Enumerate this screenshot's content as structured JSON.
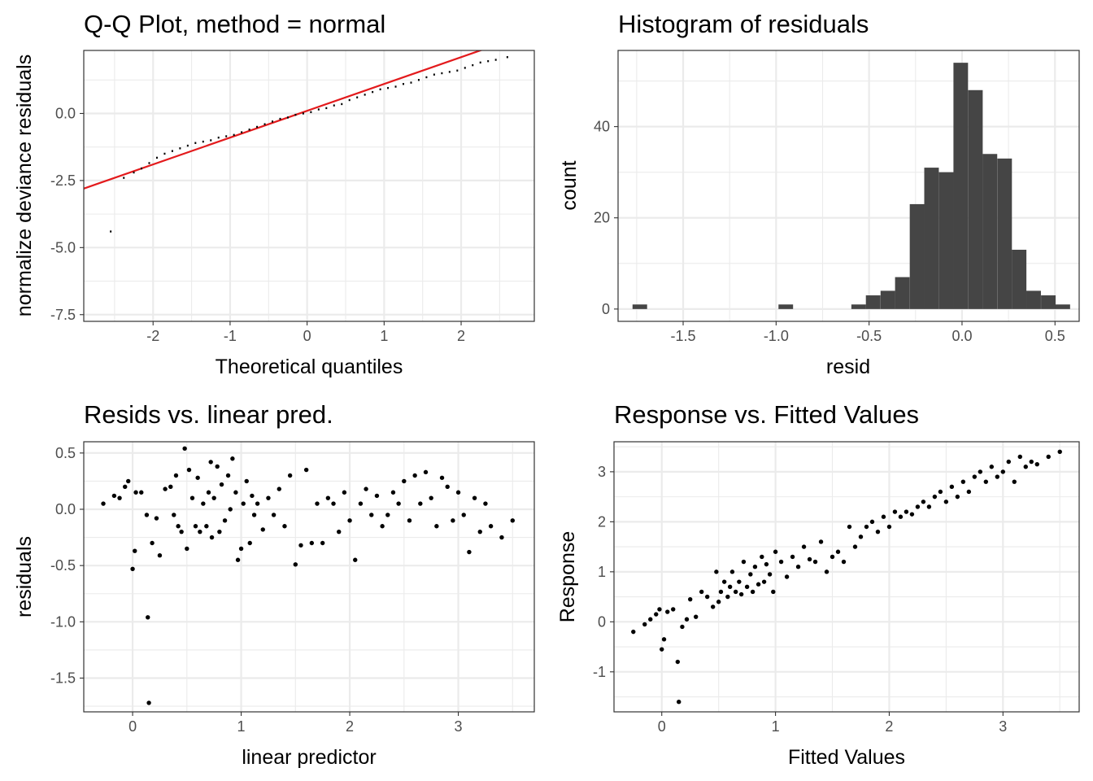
{
  "colors": {
    "points": "#000000",
    "bars": "#454545",
    "qq_line": "#e31a1c",
    "grid": "#ebebeb",
    "border": "#333333"
  },
  "chart_data": [
    {
      "type": "scatter",
      "title": "Q-Q Plot, method = normal",
      "xlabel": "Theoretical quantiles",
      "ylabel": "normalize deviance residuals",
      "xlim": [
        -2.9,
        2.95
      ],
      "ylim": [
        -7.75,
        2.35
      ],
      "xticks": [
        -2,
        -1,
        0,
        1,
        2
      ],
      "xtick_labels": [
        "-2",
        "-1",
        "0",
        "1",
        "2"
      ],
      "yticks": [
        -7.5,
        -5,
        -2.5,
        0
      ],
      "ytick_labels": [
        "-7.5",
        "-5.0",
        "-2.5",
        "0.0"
      ],
      "grid": true,
      "reference_line": {
        "intercept": 0.1,
        "slope": 1.0,
        "color": "#e31a1c"
      },
      "x": [
        -2.55,
        -2.38,
        -2.25,
        -2.15,
        -2.05,
        -1.95,
        -1.85,
        -1.75,
        -1.65,
        -1.55,
        -1.45,
        -1.35,
        -1.25,
        -1.15,
        -1.05,
        -0.95,
        -0.85,
        -0.75,
        -0.65,
        -0.55,
        -0.45,
        -0.35,
        -0.25,
        -0.15,
        -0.05,
        0.05,
        0.15,
        0.25,
        0.35,
        0.45,
        0.55,
        0.65,
        0.75,
        0.85,
        0.95,
        1.05,
        1.15,
        1.25,
        1.35,
        1.45,
        1.55,
        1.65,
        1.75,
        1.85,
        1.95,
        2.05,
        2.15,
        2.25,
        2.35,
        2.45,
        2.6
      ],
      "y": [
        -4.4,
        -2.4,
        -2.2,
        -2.05,
        -1.85,
        -1.65,
        -1.5,
        -1.4,
        -1.3,
        -1.2,
        -1.1,
        -1.05,
        -1.0,
        -0.9,
        -0.85,
        -0.8,
        -0.7,
        -0.6,
        -0.5,
        -0.4,
        -0.3,
        -0.2,
        -0.15,
        -0.05,
        0.0,
        0.05,
        0.15,
        0.2,
        0.3,
        0.35,
        0.5,
        0.6,
        0.7,
        0.8,
        0.9,
        0.95,
        1.0,
        1.1,
        1.15,
        1.25,
        1.35,
        1.45,
        1.5,
        1.55,
        1.6,
        1.7,
        1.8,
        1.9,
        1.95,
        2.0,
        2.1
      ]
    },
    {
      "type": "bar",
      "title": "Histogram of residuals",
      "xlabel": "resid",
      "ylabel": "count",
      "xlim": [
        -1.85,
        0.63
      ],
      "ylim": [
        -2.7,
        56.7
      ],
      "xticks": [
        -1.5,
        -1.0,
        -0.5,
        0.0,
        0.5
      ],
      "xtick_labels": [
        "-1.5",
        "-1.0",
        "-0.5",
        "0.0",
        "0.5"
      ],
      "yticks": [
        0,
        20,
        40
      ],
      "ytick_labels": [
        "0",
        "20",
        "40"
      ],
      "grid": true,
      "bin_width": 0.0784,
      "bin_centers": [
        -1.733,
        -1.655,
        -1.576,
        -1.498,
        -1.419,
        -1.341,
        -1.262,
        -1.184,
        -1.105,
        -1.027,
        -0.948,
        -0.87,
        -0.792,
        -0.713,
        -0.635,
        -0.556,
        -0.478,
        -0.399,
        -0.321,
        -0.242,
        -0.164,
        -0.085,
        -0.007,
        0.072,
        0.15,
        0.229,
        0.307,
        0.385,
        0.464,
        0.542
      ],
      "values": [
        1,
        0,
        0,
        0,
        0,
        0,
        0,
        0,
        0,
        0,
        1,
        0,
        0,
        0,
        0,
        1,
        3,
        4,
        7,
        23,
        31,
        30,
        54,
        48,
        34,
        33,
        13,
        4,
        3,
        1
      ]
    },
    {
      "type": "scatter",
      "title": "Resids vs. linear pred.",
      "xlabel": "linear predictor",
      "ylabel": "residuals",
      "xlim": [
        -0.45,
        3.7
      ],
      "ylim": [
        -1.8,
        0.6
      ],
      "xticks": [
        0,
        1,
        2,
        3
      ],
      "xtick_labels": [
        "0",
        "1",
        "2",
        "3"
      ],
      "yticks": [
        -1.5,
        -1.0,
        -0.5,
        0.0,
        0.5
      ],
      "ytick_labels": [
        "-1.5",
        "-1.0",
        "-0.5",
        "0.0",
        "0.5"
      ],
      "grid": true,
      "x": [
        -0.27,
        -0.17,
        -0.12,
        -0.07,
        -0.04,
        0.0,
        0.02,
        0.03,
        0.08,
        0.13,
        0.14,
        0.15,
        0.18,
        0.22,
        0.25,
        0.3,
        0.35,
        0.38,
        0.4,
        0.42,
        0.45,
        0.48,
        0.5,
        0.52,
        0.55,
        0.58,
        0.6,
        0.62,
        0.65,
        0.68,
        0.7,
        0.72,
        0.73,
        0.75,
        0.78,
        0.8,
        0.82,
        0.85,
        0.88,
        0.9,
        0.92,
        0.95,
        0.97,
        1.0,
        1.02,
        1.05,
        1.08,
        1.1,
        1.12,
        1.15,
        1.2,
        1.25,
        1.3,
        1.35,
        1.4,
        1.45,
        1.5,
        1.55,
        1.6,
        1.65,
        1.7,
        1.75,
        1.8,
        1.85,
        1.9,
        1.95,
        2.0,
        2.05,
        2.1,
        2.15,
        2.2,
        2.25,
        2.3,
        2.35,
        2.4,
        2.45,
        2.5,
        2.55,
        2.6,
        2.65,
        2.7,
        2.75,
        2.8,
        2.85,
        2.9,
        2.95,
        3.0,
        3.05,
        3.1,
        3.15,
        3.2,
        3.25,
        3.3,
        3.4,
        3.5
      ],
      "y": [
        0.05,
        0.12,
        0.1,
        0.2,
        0.25,
        -0.53,
        -0.37,
        0.15,
        0.15,
        -0.05,
        -0.96,
        -1.72,
        -0.3,
        -0.08,
        -0.41,
        0.18,
        0.2,
        -0.05,
        0.3,
        -0.15,
        -0.2,
        0.54,
        -0.35,
        0.35,
        0.1,
        -0.15,
        0.28,
        -0.2,
        0.05,
        -0.15,
        0.15,
        0.42,
        -0.25,
        0.1,
        0.38,
        -0.2,
        0.22,
        -0.1,
        0.3,
        0.0,
        0.45,
        0.15,
        -0.45,
        -0.35,
        0.05,
        0.25,
        -0.3,
        0.12,
        -0.05,
        0.05,
        -0.18,
        0.1,
        -0.05,
        0.18,
        -0.15,
        0.3,
        -0.49,
        -0.32,
        0.35,
        -0.3,
        0.05,
        -0.3,
        0.1,
        0.05,
        -0.2,
        0.15,
        -0.1,
        -0.45,
        0.05,
        0.18,
        -0.05,
        0.12,
        -0.15,
        -0.05,
        0.15,
        0.05,
        0.25,
        -0.1,
        0.3,
        0.05,
        0.33,
        0.1,
        -0.15,
        0.28,
        0.2,
        -0.1,
        0.15,
        -0.05,
        -0.38,
        0.1,
        -0.2,
        0.05,
        -0.15,
        -0.25,
        -0.1
      ]
    },
    {
      "type": "scatter",
      "title": "Response vs. Fitted Values",
      "xlabel": "Fitted Values",
      "ylabel": "Response",
      "xlim": [
        -0.42,
        3.67
      ],
      "ylim": [
        -1.8,
        3.6
      ],
      "xticks": [
        0,
        1,
        2,
        3
      ],
      "xtick_labels": [
        "0",
        "1",
        "2",
        "3"
      ],
      "yticks": [
        -1,
        0,
        1,
        2,
        3
      ],
      "ytick_labels": [
        "-1",
        "0",
        "1",
        "2",
        "3"
      ],
      "grid": true,
      "x": [
        -0.25,
        -0.15,
        -0.1,
        -0.05,
        -0.02,
        0.0,
        0.02,
        0.05,
        0.1,
        0.14,
        0.15,
        0.18,
        0.22,
        0.25,
        0.3,
        0.35,
        0.4,
        0.45,
        0.48,
        0.5,
        0.52,
        0.55,
        0.58,
        0.6,
        0.62,
        0.65,
        0.68,
        0.7,
        0.72,
        0.75,
        0.78,
        0.8,
        0.82,
        0.85,
        0.88,
        0.9,
        0.92,
        0.95,
        0.98,
        1.0,
        1.05,
        1.1,
        1.15,
        1.2,
        1.25,
        1.3,
        1.35,
        1.4,
        1.45,
        1.5,
        1.55,
        1.6,
        1.65,
        1.7,
        1.75,
        1.8,
        1.85,
        1.9,
        1.95,
        2.0,
        2.05,
        2.1,
        2.15,
        2.2,
        2.25,
        2.3,
        2.35,
        2.4,
        2.45,
        2.5,
        2.55,
        2.6,
        2.65,
        2.7,
        2.75,
        2.8,
        2.85,
        2.9,
        2.95,
        3.0,
        3.05,
        3.1,
        3.15,
        3.2,
        3.25,
        3.3,
        3.4,
        3.5
      ],
      "y": [
        -0.2,
        -0.05,
        0.05,
        0.15,
        0.25,
        -0.55,
        -0.35,
        0.2,
        0.25,
        -0.8,
        -1.6,
        -0.1,
        0.05,
        0.45,
        0.1,
        0.6,
        0.5,
        0.3,
        1.0,
        0.4,
        0.6,
        0.8,
        0.5,
        0.7,
        1.0,
        0.6,
        0.8,
        0.55,
        1.2,
        0.7,
        0.95,
        0.6,
        1.1,
        0.75,
        1.3,
        0.8,
        1.15,
        0.95,
        0.6,
        1.4,
        1.2,
        0.9,
        1.3,
        1.1,
        1.5,
        1.25,
        1.2,
        1.6,
        1.0,
        1.3,
        1.4,
        1.2,
        1.9,
        1.5,
        1.7,
        1.9,
        2.0,
        1.8,
        2.1,
        1.9,
        2.2,
        2.1,
        2.2,
        2.15,
        2.3,
        2.4,
        2.3,
        2.5,
        2.6,
        2.4,
        2.7,
        2.5,
        2.8,
        2.6,
        2.9,
        3.0,
        2.8,
        3.1,
        2.9,
        3.0,
        3.2,
        2.8,
        3.3,
        3.1,
        3.2,
        3.15,
        3.3,
        3.4
      ]
    }
  ]
}
